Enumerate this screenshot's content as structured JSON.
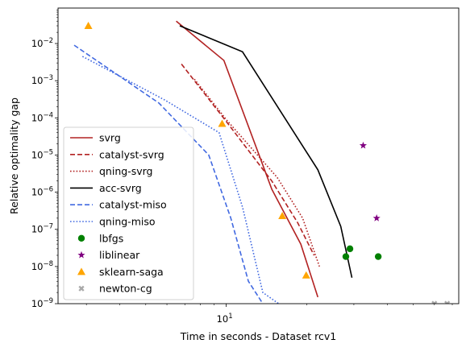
{
  "chart_data": {
    "type": "line",
    "title": "",
    "xlabel": "Time in seconds - Dataset rcv1",
    "ylabel": "Relative optimality gap",
    "xscale": "log",
    "yscale": "log",
    "xlim": [
      2.35,
      74
    ],
    "ylim": [
      1e-09,
      0.09
    ],
    "x_tick_labels": [
      {
        "value": 10,
        "base": "10",
        "exp": "1"
      }
    ],
    "y_tick_labels": [
      {
        "value": 1e-09,
        "base": "10",
        "exp": "−9"
      },
      {
        "value": 1e-08,
        "base": "10",
        "exp": "−8"
      },
      {
        "value": 1e-07,
        "base": "10",
        "exp": "−7"
      },
      {
        "value": 1e-06,
        "base": "10",
        "exp": "−6"
      },
      {
        "value": 1e-05,
        "base": "10",
        "exp": "−5"
      },
      {
        "value": 0.0001,
        "base": "10",
        "exp": "−4"
      },
      {
        "value": 0.001,
        "base": "10",
        "exp": "−3"
      },
      {
        "value": 0.01,
        "base": "10",
        "exp": "−2"
      }
    ],
    "legend_position": "lower-left",
    "series": [
      {
        "name": "svrg",
        "kind": "line",
        "color": "#b22222",
        "dash": "solid",
        "points": [
          [
            6.5,
            0.04
          ],
          [
            9.8,
            0.0035
          ],
          [
            14.8,
            1.2e-06
          ],
          [
            19.0,
            4e-08
          ],
          [
            22.0,
            1.5e-09
          ]
        ]
      },
      {
        "name": "catalyst-svrg",
        "kind": "line",
        "color": "#b22222",
        "dash": "dashed",
        "points": [
          [
            6.8,
            0.0028
          ],
          [
            10.0,
            8e-05
          ],
          [
            14.8,
            2e-06
          ],
          [
            18.5,
            1.5e-07
          ],
          [
            21.3,
            2e-08
          ]
        ]
      },
      {
        "name": "qning-svrg",
        "kind": "line",
        "color": "#b22222",
        "dash": "dotted",
        "points": [
          [
            7.6,
            0.0011
          ],
          [
            10.0,
            9e-05
          ],
          [
            15.5,
            2.5e-06
          ],
          [
            19.3,
            2e-07
          ],
          [
            22.3,
            1e-08
          ]
        ]
      },
      {
        "name": "acc-svrg",
        "kind": "line",
        "color": "#000000",
        "dash": "solid",
        "points": [
          [
            6.7,
            0.03
          ],
          [
            11.5,
            0.006
          ],
          [
            22.0,
            4e-06
          ],
          [
            26.8,
            1.2e-07
          ],
          [
            29.5,
            5e-09
          ]
        ]
      },
      {
        "name": "catalyst-miso",
        "kind": "line",
        "color": "#4169e1",
        "dash": "dashed",
        "points": [
          [
            2.7,
            0.009
          ],
          [
            5.6,
            0.00025
          ],
          [
            8.6,
            1e-05
          ],
          [
            10.4,
            2e-07
          ],
          [
            12.1,
            4e-09
          ],
          [
            13.7,
            1e-09
          ]
        ]
      },
      {
        "name": "qning-miso",
        "kind": "line",
        "color": "#4169e1",
        "dash": "dotted",
        "points": [
          [
            2.9,
            0.0045
          ],
          [
            5.9,
            0.0003
          ],
          [
            9.4,
            4e-05
          ],
          [
            11.5,
            4e-07
          ],
          [
            13.7,
            2e-09
          ],
          [
            15.7,
            1e-09
          ]
        ]
      },
      {
        "name": "lbfgs",
        "kind": "scatter",
        "marker": "circle",
        "color": "#008000",
        "points": [
          [
            28.0,
            1.85e-08
          ],
          [
            29.0,
            3e-08
          ],
          [
            37.0,
            1.85e-08
          ]
        ]
      },
      {
        "name": "liblinear",
        "kind": "scatter",
        "marker": "star",
        "color": "#800080",
        "points": [
          [
            32.5,
            1.8e-05
          ],
          [
            36.5,
            2e-07
          ]
        ]
      },
      {
        "name": "sklearn-saga",
        "kind": "scatter",
        "marker": "triangle",
        "color": "#ffa500",
        "points": [
          [
            3.05,
            0.03
          ],
          [
            9.65,
            7e-05
          ],
          [
            16.2,
            2.3e-07
          ],
          [
            19.9,
            5.8e-09
          ]
        ]
      },
      {
        "name": "newton-cg",
        "kind": "scatter",
        "marker": "x",
        "color": "#a9a9a9",
        "points": [
          [
            60.0,
            1e-09
          ],
          [
            67.0,
            1e-09
          ]
        ]
      }
    ]
  }
}
